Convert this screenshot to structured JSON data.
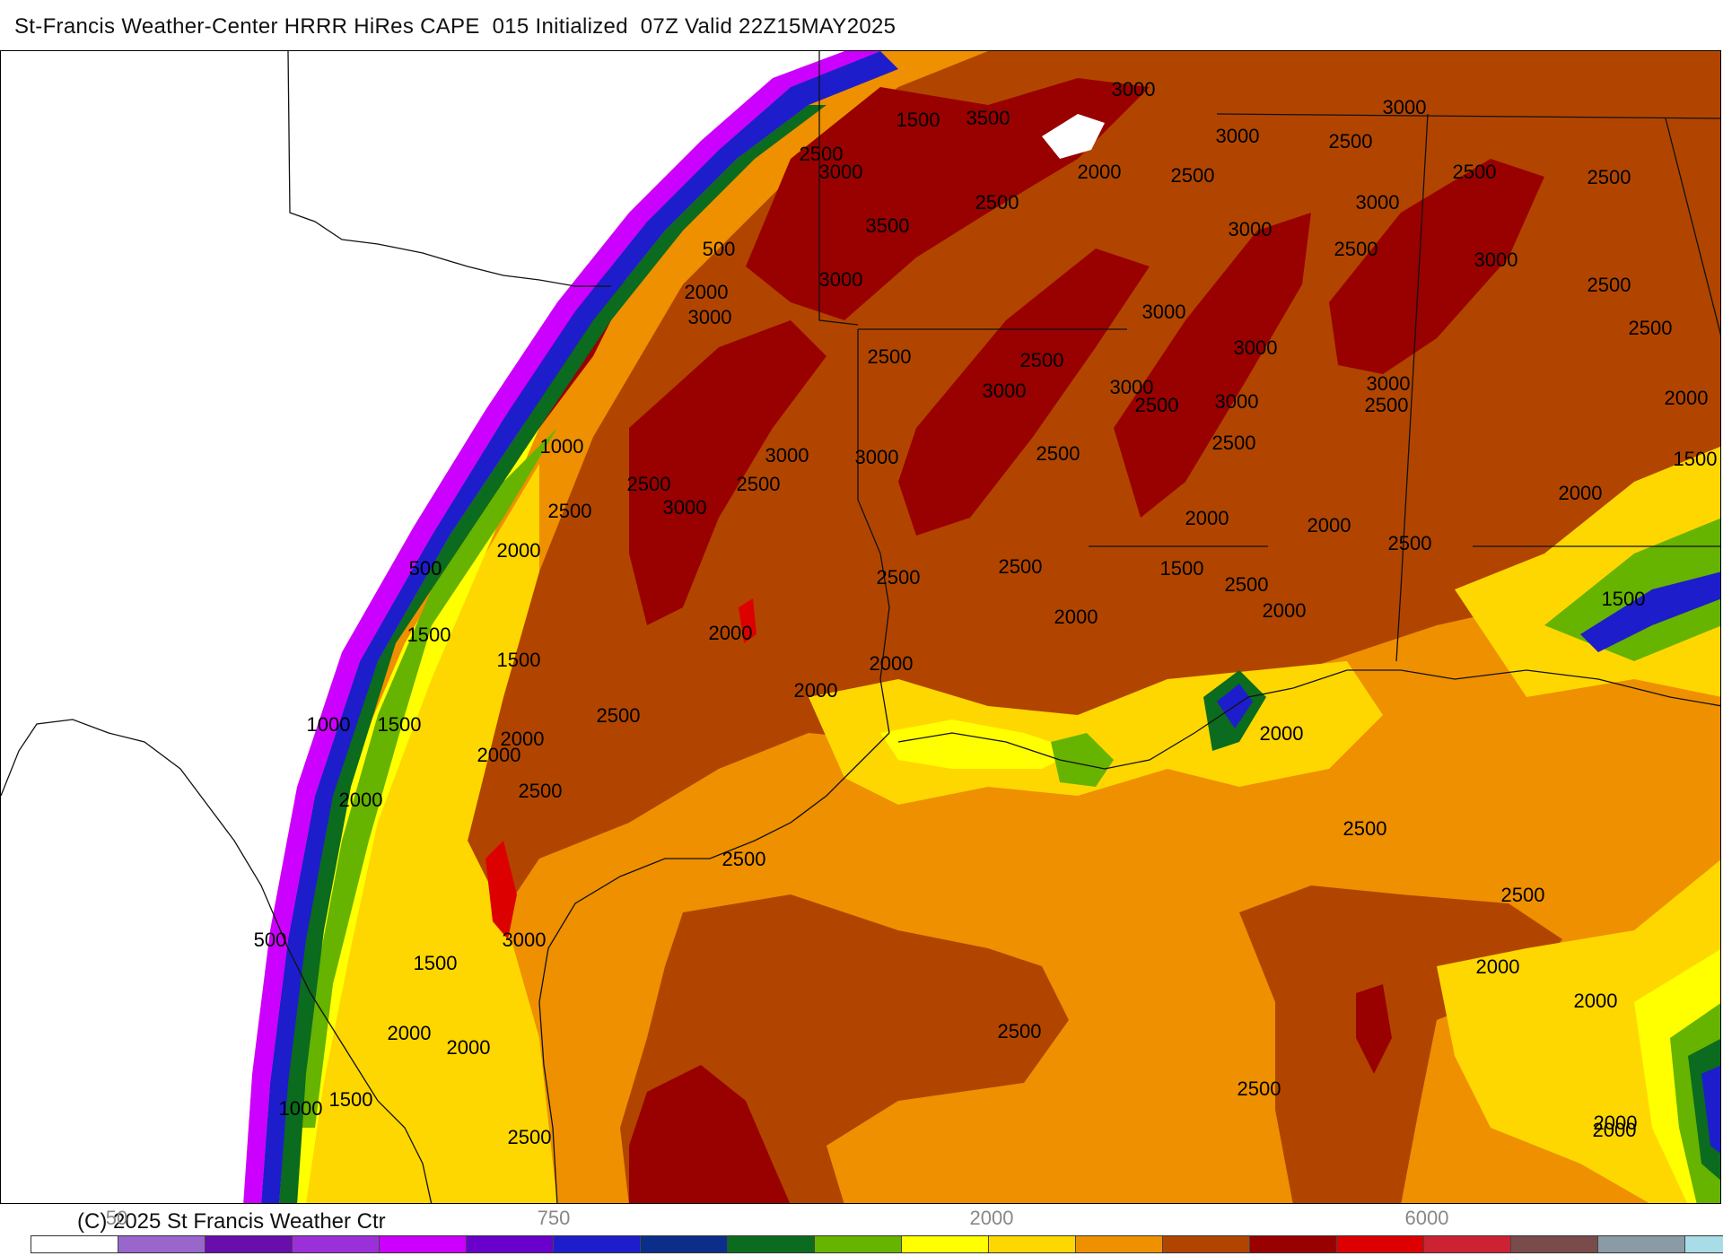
{
  "header": {
    "title": "St-Francis Weather-Center HRRR HiRes CAPE  015 Initialized  07Z Valid 22Z15MAY2025"
  },
  "footer": {
    "copyright": "(C) 2025 St Francis Weather Ctr"
  },
  "colorbar": {
    "tick_labels": [
      "50",
      "750",
      "2000",
      "6000"
    ],
    "colors": [
      "#ffffff",
      "#9966cc",
      "#6a0dad",
      "#9b30d9",
      "#cc00ff",
      "#6a00cc",
      "#1d1dcc",
      "#0b2e8a",
      "#0b6b1e",
      "#66b300",
      "#ffff00",
      "#ffd700",
      "#ee9000",
      "#b14500",
      "#990000",
      "#dd0000",
      "#cc2233",
      "#7a4b4b",
      "#8a9ba6",
      "#a8dde8"
    ]
  },
  "map": {
    "field": "CAPE",
    "palette": {
      "c500": "#cc00ff",
      "c1000": "#1d1dcc",
      "c1500": "#0b6b1e",
      "c1750": "#66b300",
      "c2000": "#ffff00",
      "c2250": "#ffd700",
      "c2500": "#ee9000",
      "c3000": "#b14500",
      "c3500": "#990000",
      "c4000": "#dd0000"
    },
    "contour_labels": [
      "3000",
      "1500",
      "3500",
      "2500",
      "3000",
      "3000",
      "2500",
      "3000",
      "2000",
      "2500",
      "2500",
      "2500",
      "2500",
      "3500",
      "3000",
      "3000",
      "2500",
      "3000",
      "500",
      "3000",
      "2500",
      "2500",
      "2000",
      "3000",
      "3000",
      "3000",
      "2500",
      "2500",
      "2500",
      "3000",
      "3000",
      "3000",
      "2500",
      "2000",
      "3000",
      "2500",
      "3000",
      "1000",
      "3000",
      "2500",
      "2500",
      "1500",
      "2500",
      "3000",
      "2500",
      "2000",
      "2000",
      "2000",
      "2500",
      "2000",
      "2500",
      "1500",
      "2500",
      "500",
      "2500",
      "1500",
      "2000",
      "2000",
      "2000",
      "1500",
      "2000",
      "2000",
      "1500",
      "2500",
      "2000",
      "1000",
      "1500",
      "2000",
      "2000",
      "2500",
      "2000",
      "2500",
      "2500",
      "2500",
      "500",
      "3000",
      "2000",
      "1500",
      "2000",
      "2000",
      "2000",
      "2500",
      "2000",
      "2500",
      "1500",
      "1000",
      "2500",
      "2000"
    ]
  }
}
